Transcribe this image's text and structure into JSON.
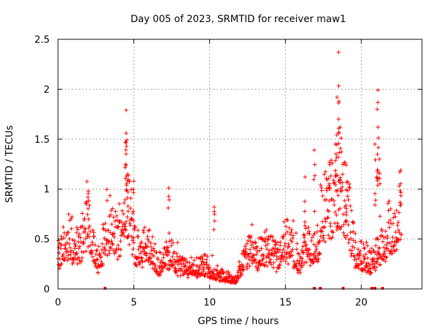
{
  "chart_data": {
    "type": "scatter",
    "title": "Day 005 of 2023, SRMTID for receiver maw1",
    "xlabel": "GPS time / hours",
    "ylabel": "SRMTID / TECUs",
    "xlim": [
      0,
      24
    ],
    "ylim": [
      0,
      2.5
    ],
    "x_ticks": [
      0,
      5,
      10,
      15,
      20
    ],
    "x_tick_labels": [
      "0",
      "5",
      "10",
      "15",
      "20"
    ],
    "y_ticks": [
      0,
      0.5,
      1,
      1.5,
      2,
      2.5
    ],
    "y_tick_labels": [
      "0",
      "0.5",
      "1",
      "1.5",
      "2",
      "2.5"
    ],
    "grid": true,
    "marker": "+",
    "series_color": "#ff0000",
    "envelope": {
      "x": [
        0,
        0.5,
        1,
        1.5,
        2,
        2.5,
        3,
        3.5,
        4,
        4.5,
        5,
        5.5,
        6,
        6.5,
        7,
        7.5,
        8,
        8.5,
        9,
        9.5,
        10,
        10.5,
        11,
        11.5,
        12,
        12.5,
        13,
        13.5,
        14,
        14.5,
        15,
        15.5,
        16,
        16.5,
        17,
        17.5,
        18,
        18.5,
        19,
        19.5,
        20,
        20.5,
        21,
        21.5,
        22,
        22.5
      ],
      "y": [
        0.3,
        0.35,
        0.4,
        0.55,
        0.7,
        0.4,
        0.45,
        0.5,
        0.55,
        0.7,
        0.45,
        0.35,
        0.4,
        0.35,
        0.3,
        0.35,
        0.25,
        0.15,
        0.2,
        0.2,
        0.15,
        0.2,
        0.12,
        0.1,
        0.2,
        0.3,
        0.35,
        0.3,
        0.3,
        0.35,
        0.4,
        0.45,
        0.35,
        0.4,
        0.45,
        0.6,
        0.7,
        0.9,
        0.7,
        0.55,
        0.35,
        0.25,
        0.45,
        0.35,
        0.5,
        0.7
      ]
    },
    "spikes": [
      {
        "x": 4.5,
        "y": 1.79
      },
      {
        "x": 4.5,
        "y": 1.56
      },
      {
        "x": 4.45,
        "y": 1.47
      },
      {
        "x": 4.6,
        "y": 1.15
      },
      {
        "x": 5.0,
        "y": 1.08
      },
      {
        "x": 7.3,
        "y": 1.01
      },
      {
        "x": 2.0,
        "y": 0.98
      },
      {
        "x": 10.3,
        "y": 0.82
      },
      {
        "x": 16.3,
        "y": 1.12
      },
      {
        "x": 16.9,
        "y": 1.39
      },
      {
        "x": 17.9,
        "y": 1.27
      },
      {
        "x": 18.5,
        "y": 2.37
      },
      {
        "x": 18.4,
        "y": 1.92
      },
      {
        "x": 18.5,
        "y": 1.7
      },
      {
        "x": 18.6,
        "y": 1.62
      },
      {
        "x": 18.3,
        "y": 1.45
      },
      {
        "x": 19.0,
        "y": 1.24
      },
      {
        "x": 21.1,
        "y": 1.99
      },
      {
        "x": 21.05,
        "y": 1.8
      },
      {
        "x": 21.1,
        "y": 1.62
      },
      {
        "x": 20.9,
        "y": 1.45
      },
      {
        "x": 21.2,
        "y": 1.3
      },
      {
        "x": 22.6,
        "y": 1.19
      }
    ],
    "zero_points": [
      3.1,
      16.9,
      17.3,
      18.8,
      20.7,
      20.9,
      21.4
    ]
  }
}
